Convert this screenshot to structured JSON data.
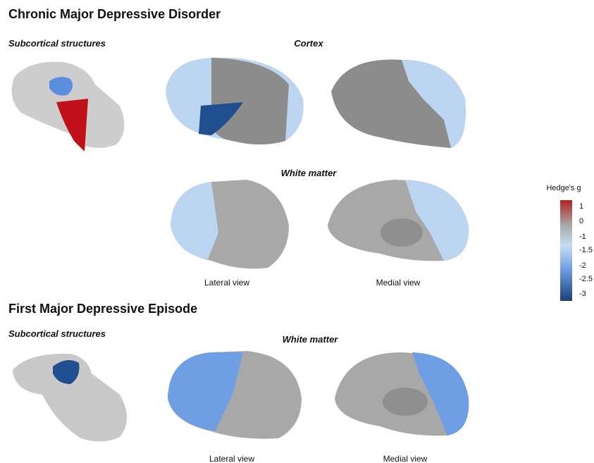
{
  "sections": [
    {
      "title": "Chronic Major Depressive Disorder",
      "subcortical_label": "Subcortical structures",
      "cortex_label": "Cortex",
      "white_matter_label": "White matter",
      "views": [
        "Lateral view",
        "Medial view"
      ]
    },
    {
      "title": "First Major Depressive Episode",
      "subcortical_label": "Subcortical structures",
      "white_matter_label": "White matter",
      "views": [
        "Lateral view",
        "Medial view"
      ]
    }
  ],
  "colorbar": {
    "title": "Hedge's g",
    "ticks": [
      1,
      0,
      -1,
      -1.5,
      -2,
      -2.5,
      -3
    ]
  }
}
